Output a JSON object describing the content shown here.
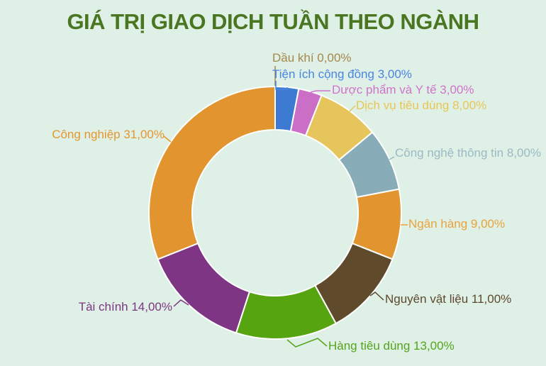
{
  "title": "GIÁ TRỊ GIAO DỊCH TUẦN THEO NGÀNH",
  "colors": {
    "background": "#dff0e7",
    "title": "#4b7621",
    "slice_border": "#ffffff"
  },
  "chart_data": {
    "type": "pie",
    "subtype": "donut",
    "title": "GIÁ TRỊ GIAO DỊCH TUẦN THEO NGÀNH",
    "unit": "%",
    "start_angle_deg": 0,
    "direction": "clockwise",
    "inner_radius_ratio": 0.66,
    "legend": "none",
    "labels_style": "outside-with-connectors",
    "slices": [
      {
        "label": "Dầu khí",
        "value": 0,
        "display": "Dầu khí 0,00%",
        "color": "#a5884a",
        "label_color": "#a5884a"
      },
      {
        "label": "Tiện ích cộng đồng",
        "value": 3,
        "display": "Tiện ích cộng đồng 3,00%",
        "color": "#3d7ad2",
        "label_color": "#4a85e0"
      },
      {
        "label": "Dược phẩm và Y tế",
        "value": 3,
        "display": "Dược phẩm và Y tế 3,00%",
        "color": "#cb6ec5",
        "label_color": "#d173ca"
      },
      {
        "label": "Dịch vụ tiêu dùng",
        "value": 8,
        "display": "Dịch vụ tiêu dùng 8,00%",
        "color": "#e5c55c",
        "label_color": "#e8c654"
      },
      {
        "label": "Công nghệ thông tin",
        "value": 8,
        "display": "Công nghệ thông tin 8,00%",
        "color": "#88acb8",
        "label_color": "#9cbac3"
      },
      {
        "label": "Ngân hàng",
        "value": 9,
        "display": "Ngân hàng 9,00%",
        "color": "#e2952f",
        "label_color": "#e9a33c"
      },
      {
        "label": "Nguyên vật liệu",
        "value": 11,
        "display": "Nguyên vật liệu 11,00%",
        "color": "#5f4a2b",
        "label_color": "#5e492c"
      },
      {
        "label": "Hàng tiêu dùng",
        "value": 13,
        "display": "Hàng tiêu dùng 13,00%",
        "color": "#57a411",
        "label_color": "#55a419"
      },
      {
        "label": "Tài chính",
        "value": 14,
        "display": "Tài chính 14,00%",
        "color": "#7e3583",
        "label_color": "#7d3682"
      },
      {
        "label": "Công nghiệp",
        "value": 31,
        "display": "Công nghiệp 31,00%",
        "color": "#e2952f",
        "label_color": "#e5962e"
      }
    ]
  }
}
